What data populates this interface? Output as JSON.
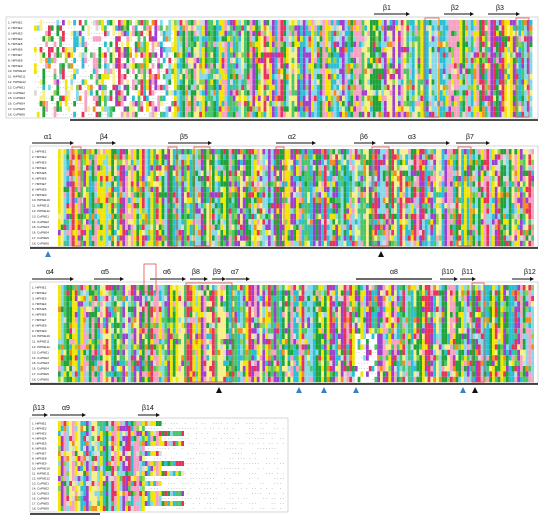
{
  "sequence_names": [
    "1. HiPNE1",
    "2. HiPNE2",
    "3. HiPNE3",
    "4. HiPNE4",
    "5. HiPNE5",
    "6. HiPNE6",
    "7. HiPNE7",
    "8. HiPNE8",
    "9. HiPNE9",
    "10. HiPNE10",
    "11. HiPNE11",
    "12. HiPNE12",
    "13. CsPNE1",
    "14. CsPNE2",
    "15. CsPNE3",
    "16. CsPNE4",
    "17. CsPNE5",
    "18. CsPNE6"
  ],
  "palette": [
    "#1fa33a",
    "#4cc46a",
    "#f2e600",
    "#f6f08a",
    "#2bbfd6",
    "#86d9e8",
    "#f7a2c4",
    "#e8315b",
    "#9e3fd0",
    "#f28e1c",
    "#d9d9d9",
    "#8fd14f"
  ],
  "blocks": [
    {
      "id": "block-1",
      "structure_labels": [
        {
          "name": "beta1",
          "text": "β1"
        },
        {
          "name": "beta2",
          "text": "β2"
        },
        {
          "name": "beta3",
          "text": "β3"
        }
      ],
      "markers": []
    },
    {
      "id": "block-2",
      "structure_labels": [
        {
          "name": "alpha1",
          "text": "α1"
        },
        {
          "name": "beta4",
          "text": "β4"
        },
        {
          "name": "beta5",
          "text": "β5"
        },
        {
          "name": "alpha2",
          "text": "α2"
        },
        {
          "name": "beta6",
          "text": "β6"
        },
        {
          "name": "alpha3",
          "text": "α3"
        },
        {
          "name": "beta7",
          "text": "β7"
        }
      ],
      "markers": [
        {
          "color": "#3b82c4"
        },
        {
          "color": "#111111"
        }
      ]
    },
    {
      "id": "block-3",
      "structure_labels": [
        {
          "name": "alpha4",
          "text": "α4"
        },
        {
          "name": "alpha5",
          "text": "α5"
        },
        {
          "name": "alpha6",
          "text": "α6"
        },
        {
          "name": "beta8",
          "text": "β8"
        },
        {
          "name": "beta9",
          "text": "β9"
        },
        {
          "name": "alpha7",
          "text": "α7"
        },
        {
          "name": "alpha8",
          "text": "α8"
        },
        {
          "name": "beta10",
          "text": "β10"
        },
        {
          "name": "beta11",
          "text": "β11"
        },
        {
          "name": "beta12",
          "text": "β12"
        }
      ],
      "markers": [
        {
          "color": "#111111"
        },
        {
          "color": "#3b82c4"
        },
        {
          "color": "#3b82c4"
        },
        {
          "color": "#3b82c4"
        },
        {
          "color": "#3b82c4"
        },
        {
          "color": "#111111"
        }
      ]
    },
    {
      "id": "block-4",
      "structure_labels": [
        {
          "name": "beta13",
          "text": "β13"
        },
        {
          "name": "alpha9",
          "text": "α9"
        },
        {
          "name": "beta14",
          "text": "β14"
        }
      ],
      "markers": []
    }
  ]
}
